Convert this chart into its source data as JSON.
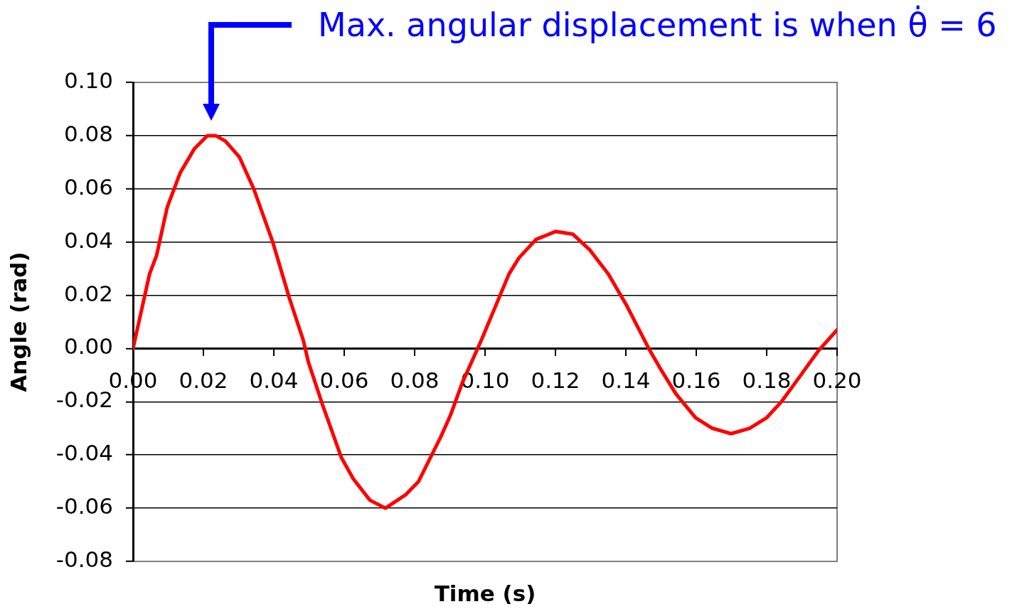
{
  "chart_data": {
    "type": "line",
    "xlabel": "Time (s)",
    "ylabel": "Angle (rad)",
    "annotations": [
      "Max. angular displacement is when θ̇ = 6"
    ],
    "x": [
      0,
      0.0047,
      0.0067,
      0.0097,
      0.0134,
      0.0174,
      0.0211,
      0.0235,
      0.0262,
      0.0302,
      0.0343,
      0.037,
      0.0397,
      0.0444,
      0.0484,
      0.0498,
      0.0538,
      0.0592,
      0.0626,
      0.0673,
      0.0717,
      0.0774,
      0.0811,
      0.0875,
      0.0902,
      0.0935,
      0.0989,
      0.1068,
      0.1096,
      0.1145,
      0.1201,
      0.1249,
      0.1298,
      0.135,
      0.1403,
      0.1465,
      0.15,
      0.1542,
      0.1598,
      0.1646,
      0.1699,
      0.1751,
      0.18,
      0.1842,
      0.1897,
      0.1946,
      0.2
    ],
    "series": [
      {
        "color": "#ff0000",
        "values": [
          0,
          0.028,
          0.035,
          0.053,
          0.066,
          0.075,
          0.08,
          0.08,
          0.078,
          0.072,
          0.06,
          0.05,
          0.04,
          0.019,
          0.003,
          -0.005,
          -0.021,
          -0.041,
          -0.049,
          -0.057,
          -0.06,
          -0.055,
          -0.05,
          -0.033,
          -0.025,
          -0.013,
          0.003,
          0.028,
          0.034,
          0.041,
          0.044,
          0.043,
          0.037,
          0.028,
          0.016,
          0.0,
          -0.008,
          -0.017,
          -0.026,
          -0.03,
          -0.032,
          -0.03,
          -0.026,
          -0.02,
          -0.01,
          -0.001,
          0.007
        ]
      }
    ],
    "xlim": [
      0,
      0.2
    ],
    "ylim": [
      -0.08,
      0.1
    ],
    "xticks": [
      {
        "value": 0,
        "label": "0.00"
      },
      {
        "value": 0.02,
        "label": "0.02"
      },
      {
        "value": 0.04,
        "label": "0.04"
      },
      {
        "value": 0.06,
        "label": "0.06"
      },
      {
        "value": 0.08,
        "label": "0.08"
      },
      {
        "value": 0.1,
        "label": "0.10"
      },
      {
        "value": 0.12,
        "label": "0.12"
      },
      {
        "value": 0.14,
        "label": "0.14"
      },
      {
        "value": 0.16,
        "label": "0.16"
      },
      {
        "value": 0.18,
        "label": "0.18"
      },
      {
        "value": 0.2,
        "label": "0.20"
      }
    ],
    "yticks": [
      {
        "value": -0.08,
        "label": "-0.08"
      },
      {
        "value": -0.06,
        "label": "-0.06"
      },
      {
        "value": -0.04,
        "label": "-0.04"
      },
      {
        "value": -0.02,
        "label": "-0.02"
      },
      {
        "value": 0,
        "label": "0.00"
      },
      {
        "value": 0.02,
        "label": "0.02"
      },
      {
        "value": 0.04,
        "label": "0.04"
      },
      {
        "value": 0.06,
        "label": "0.06"
      },
      {
        "value": 0.08,
        "label": "0.08"
      },
      {
        "value": 0.1,
        "label": "0.10"
      }
    ],
    "grid": "y",
    "marker": "none"
  }
}
